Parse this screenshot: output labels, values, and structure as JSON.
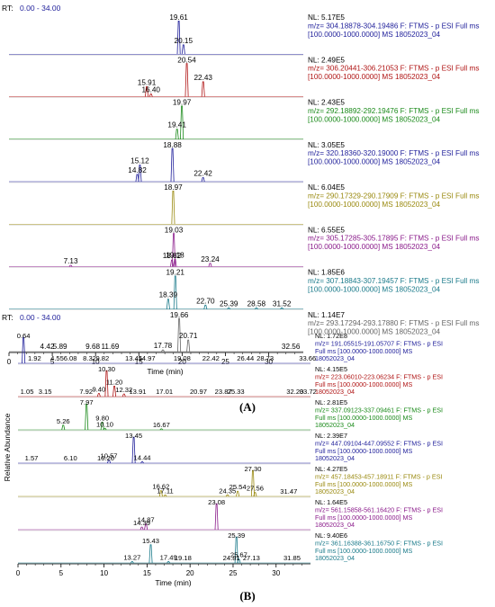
{
  "chart_data": [
    {
      "type": "line",
      "panel_label": "(A)",
      "rt_label": "RT:",
      "rt_range": "0.00 - 34.00",
      "xlabel": "Time (min)",
      "ylabel": "",
      "xlim": [
        0,
        34
      ],
      "xticks": [
        0,
        5,
        10,
        15,
        20,
        25,
        30
      ],
      "series": [
        {
          "nl": "NL: 5.17E5",
          "info": [
            "m/z= 304.18878-304.19486 F: FTMS - p ESI Full ms",
            "[100.0000-1000.0000]  MS 18052023_04"
          ],
          "color": "#1f1f9a",
          "peaks": [
            {
              "x": 19.61,
              "h": 1.0
            },
            {
              "x": 20.15,
              "h": 0.28
            }
          ],
          "labels": [
            {
              "x": 19.61,
              "t": "19.61"
            },
            {
              "x": 20.15,
              "t": "20.15"
            }
          ]
        },
        {
          "nl": "NL: 2.49E5",
          "info": [
            "m/z= 306.20441-306.21053 F: FTMS - p ESI Full ms",
            "[100.0000-1000.0000]  MS 18052023_04"
          ],
          "color": "#b01515",
          "peaks": [
            {
              "x": 15.91,
              "h": 0.3
            },
            {
              "x": 16.4,
              "h": 0.08
            },
            {
              "x": 20.54,
              "h": 1.0
            },
            {
              "x": 22.43,
              "h": 0.45
            }
          ],
          "labels": [
            {
              "x": 20.54,
              "t": "20.54"
            },
            {
              "x": 15.91,
              "t": "15.91"
            },
            {
              "x": 16.4,
              "t": "16.40"
            },
            {
              "x": 22.43,
              "t": "22.43"
            }
          ]
        },
        {
          "nl": "NL: 2.43E5",
          "info": [
            "m/z= 292.18892-292.19476 F: FTMS - p ESI Full ms",
            "[100.0000-1000.0000]  MS 18052023_04"
          ],
          "color": "#1a8a1a",
          "peaks": [
            {
              "x": 19.97,
              "h": 1.0
            },
            {
              "x": 19.41,
              "h": 0.3
            }
          ],
          "labels": [
            {
              "x": 19.97,
              "t": "19.97"
            },
            {
              "x": 19.41,
              "t": "19.41"
            }
          ]
        },
        {
          "nl": "NL: 3.05E5",
          "info": [
            "m/z= 320.18360-320.19000 F: FTMS - p ESI Full ms",
            "[100.0000-1000.0000]  MS 18052023_04"
          ],
          "color": "#1f1f9a",
          "peaks": [
            {
              "x": 14.82,
              "h": 0.22
            },
            {
              "x": 15.12,
              "h": 0.5
            },
            {
              "x": 18.88,
              "h": 1.0
            },
            {
              "x": 22.42,
              "h": 0.12
            }
          ],
          "labels": [
            {
              "x": 18.88,
              "t": "18.88"
            },
            {
              "x": 15.12,
              "t": "15.12"
            },
            {
              "x": 14.82,
              "t": "14.82"
            },
            {
              "x": 22.42,
              "t": "22.42"
            }
          ]
        },
        {
          "nl": "NL: 6.04E5",
          "info": [
            "m/z= 290.17329-290.17909 F: FTMS - p ESI Full ms",
            "[100.0000-1000.0000]  MS 18052023_04"
          ],
          "color": "#9a8a10",
          "peaks": [
            {
              "x": 18.97,
              "h": 1.0
            }
          ],
          "labels": [
            {
              "x": 18.97,
              "t": "18.97"
            }
          ]
        },
        {
          "nl": "NL: 6.55E5",
          "info": [
            "m/z= 305.17285-305.17895 F: FTMS - p ESI Full ms",
            "[100.0000-1000.0000]  MS 18052023_04"
          ],
          "color": "#8a1a8a",
          "peaks": [
            {
              "x": 19.03,
              "h": 1.0
            },
            {
              "x": 18.82,
              "h": 0.2
            },
            {
              "x": 19.18,
              "h": 0.22
            },
            {
              "x": 23.24,
              "h": 0.1
            },
            {
              "x": 7.13,
              "h": 0.04
            }
          ],
          "labels": [
            {
              "x": 19.03,
              "t": "19.03"
            },
            {
              "x": 7.13,
              "t": "7.13"
            },
            {
              "x": 18.82,
              "t": "18.82"
            },
            {
              "x": 19.18,
              "t": "19.18"
            },
            {
              "x": 23.24,
              "t": "23.24"
            }
          ]
        },
        {
          "nl": "NL: 1.85E6",
          "info": [
            "m/z= 307.18843-307.19457 F: FTMS - p ESI Full ms",
            "[100.0000-1000.0000]  MS 18052023_04"
          ],
          "color": "#1a7a8a",
          "peaks": [
            {
              "x": 19.21,
              "h": 1.0
            },
            {
              "x": 18.39,
              "h": 0.3
            },
            {
              "x": 22.7,
              "h": 0.12
            },
            {
              "x": 25.39,
              "h": 0.04
            },
            {
              "x": 28.58,
              "h": 0.04
            },
            {
              "x": 31.52,
              "h": 0.04
            }
          ],
          "labels": [
            {
              "x": 19.21,
              "t": "19.21"
            },
            {
              "x": 18.39,
              "t": "18.39"
            },
            {
              "x": 22.7,
              "t": "22.70"
            },
            {
              "x": 25.39,
              "t": "25.39"
            },
            {
              "x": 28.58,
              "t": "28.58"
            },
            {
              "x": 31.52,
              "t": "31.52"
            }
          ]
        },
        {
          "nl": "NL: 1.14E7",
          "info": [
            "m/z= 293.17294-293.17880 F: FTMS - p ESI Full ms",
            "[100.0000-1000.0000]  MS 18052023_04"
          ],
          "color": "#666666",
          "peaks": [
            {
              "x": 19.66,
              "h": 1.0
            },
            {
              "x": 20.71,
              "h": 0.35
            },
            {
              "x": 17.78,
              "h": 0.05
            }
          ],
          "labels": [
            {
              "x": 19.66,
              "t": "19.66"
            },
            {
              "x": 4.42,
              "t": "4.42"
            },
            {
              "x": 5.89,
              "t": "5.89"
            },
            {
              "x": 9.68,
              "t": "9.68"
            },
            {
              "x": 11.69,
              "t": "11.69"
            },
            {
              "x": 17.78,
              "t": "17.78"
            },
            {
              "x": 20.71,
              "t": "20.71"
            },
            {
              "x": 32.56,
              "t": "32.56"
            }
          ]
        }
      ]
    },
    {
      "type": "line",
      "panel_label": "(B)",
      "rt_label": "RT:",
      "rt_range": "0.00 - 34.00",
      "xlabel": "Time (min)",
      "ylabel": "Relative Abundance",
      "xlim": [
        0,
        34
      ],
      "xticks": [
        0,
        5,
        10,
        15,
        20,
        25,
        30
      ],
      "series": [
        {
          "nl": "NL: 1.72E8",
          "info": [
            "m/z= 191.05515-191.05707 F: FTMS - p ESI",
            "Full ms [100.0000-1000.0000]  MS",
            "18052023_04"
          ],
          "color": "#1f1f9a",
          "peaks": [
            {
              "x": 0.64,
              "h": 1.0
            }
          ],
          "labels": [
            {
              "x": 0.64,
              "t": "0.64"
            },
            {
              "x": 1.92,
              "t": "1.92"
            },
            {
              "x": 4.55,
              "t": "4.55"
            },
            {
              "x": 6.08,
              "t": "6.08"
            },
            {
              "x": 8.32,
              "t": "8.32"
            },
            {
              "x": 9.82,
              "t": "9.82"
            },
            {
              "x": 13.45,
              "t": "13.45"
            },
            {
              "x": 14.97,
              "t": "14.97"
            },
            {
              "x": 19.08,
              "t": "19.08"
            },
            {
              "x": 22.42,
              "t": "22.42"
            },
            {
              "x": 26.44,
              "t": "26.44"
            },
            {
              "x": 28.73,
              "t": "28.73"
            },
            {
              "x": 33.66,
              "t": "33.66"
            }
          ]
        },
        {
          "nl": "NL: 4.15E5",
          "info": [
            "m/z= 223.06010-223.06234 F: FTMS - p ESI",
            "Full ms [100.0000-1000.0000]  MS",
            "18052023_04"
          ],
          "color": "#b01515",
          "peaks": [
            {
              "x": 10.3,
              "h": 1.0
            },
            {
              "x": 11.2,
              "h": 0.4
            },
            {
              "x": 9.4,
              "h": 0.12
            },
            {
              "x": 12.32,
              "h": 0.1
            }
          ],
          "labels": [
            {
              "x": 10.3,
              "t": "10.30"
            },
            {
              "x": 11.2,
              "t": "11.20"
            },
            {
              "x": 1.05,
              "t": "1.05"
            },
            {
              "x": 3.15,
              "t": "3.15"
            },
            {
              "x": 7.92,
              "t": "7.92"
            },
            {
              "x": 9.4,
              "t": "9.40"
            },
            {
              "x": 12.32,
              "t": "12.32"
            },
            {
              "x": 13.91,
              "t": "13.91"
            },
            {
              "x": 17.01,
              "t": "17.01"
            },
            {
              "x": 20.97,
              "t": "20.97"
            },
            {
              "x": 23.87,
              "t": "23.87"
            },
            {
              "x": 25.33,
              "t": "25.33"
            },
            {
              "x": 32.2,
              "t": "32.20"
            },
            {
              "x": 33.72,
              "t": "33.72"
            }
          ]
        },
        {
          "nl": "NL: 2.81E5",
          "info": [
            "m/z= 337.09123-337.09461 F: FTMS - p ESI",
            "Full ms [100.0000-1000.0000]  MS",
            "18052023_04"
          ],
          "color": "#1a8a1a",
          "peaks": [
            {
              "x": 7.97,
              "h": 1.0
            },
            {
              "x": 5.26,
              "h": 0.18
            },
            {
              "x": 9.8,
              "h": 0.3
            },
            {
              "x": 10.1,
              "h": 0.06
            },
            {
              "x": 16.67,
              "h": 0.04
            }
          ],
          "labels": [
            {
              "x": 7.97,
              "t": "7.97"
            },
            {
              "x": 5.26,
              "t": "5.26"
            },
            {
              "x": 9.8,
              "t": "9.80"
            },
            {
              "x": 10.1,
              "t": "10.10"
            },
            {
              "x": 16.67,
              "t": "16.67"
            }
          ]
        },
        {
          "nl": "NL: 2.39E7",
          "info": [
            "m/z= 447.09104-447.09552 F: FTMS - p ESI",
            "Full ms [100.0000-1000.0000]  MS",
            "18052023_04"
          ],
          "color": "#1f1f9a",
          "peaks": [
            {
              "x": 13.45,
              "h": 1.0
            },
            {
              "x": 10.57,
              "h": 0.12
            },
            {
              "x": 14.44,
              "h": 0.05
            }
          ],
          "labels": [
            {
              "x": 13.45,
              "t": "13.45"
            },
            {
              "x": 1.57,
              "t": "1.57"
            },
            {
              "x": 6.1,
              "t": "6.10"
            },
            {
              "x": 10.2,
              "t": "10.20"
            },
            {
              "x": 10.57,
              "t": "10.57"
            },
            {
              "x": 14.44,
              "t": "14.44"
            }
          ]
        },
        {
          "nl": "NL: 4.27E5",
          "info": [
            "m/z= 457.18453-457.18911 F: FTMS - p ESI",
            "Full ms [100.0000-1000.0000]  MS",
            "18052023_04"
          ],
          "color": "#9a8a10",
          "peaks": [
            {
              "x": 27.3,
              "h": 1.0
            },
            {
              "x": 16.62,
              "h": 0.22
            },
            {
              "x": 25.54,
              "h": 0.2
            },
            {
              "x": 27.56,
              "h": 0.15
            },
            {
              "x": 17.11,
              "h": 0.05
            },
            {
              "x": 24.35,
              "h": 0.06
            }
          ],
          "labels": [
            {
              "x": 27.3,
              "t": "27.30"
            },
            {
              "x": 16.62,
              "t": "16.62"
            },
            {
              "x": 17.11,
              "t": "17.11"
            },
            {
              "x": 24.35,
              "t": "24.35"
            },
            {
              "x": 25.54,
              "t": "25.54"
            },
            {
              "x": 27.56,
              "t": "27.56"
            },
            {
              "x": 31.47,
              "t": "31.47"
            }
          ]
        },
        {
          "nl": "NL: 1.64E5",
          "info": [
            "m/z= 561.15858-561.16420 F: FTMS - p ESI",
            "Full ms [100.0000-1000.0000]  MS",
            "18052023_04"
          ],
          "color": "#8a1a8a",
          "peaks": [
            {
              "x": 23.08,
              "h": 1.0
            },
            {
              "x": 14.39,
              "h": 0.1
            },
            {
              "x": 14.87,
              "h": 0.22
            }
          ],
          "labels": [
            {
              "x": 23.08,
              "t": "23.08"
            },
            {
              "x": 14.39,
              "t": "14.39"
            },
            {
              "x": 14.87,
              "t": "14.87"
            }
          ]
        },
        {
          "nl": "NL: 9.40E6",
          "info": [
            "m/z= 361.16388-361.16750 F: FTMS - p ESI",
            "Full ms [100.0000-1000.0000]  MS",
            "18052023_04"
          ],
          "color": "#1a7a8a",
          "peaks": [
            {
              "x": 25.39,
              "h": 1.0
            },
            {
              "x": 15.43,
              "h": 0.7
            },
            {
              "x": 25.67,
              "h": 0.15
            },
            {
              "x": 13.27,
              "h": 0.05
            },
            {
              "x": 17.49,
              "h": 0.05
            }
          ],
          "labels": [
            {
              "x": 25.39,
              "t": "25.39"
            },
            {
              "x": 15.43,
              "t": "15.43"
            },
            {
              "x": 13.27,
              "t": "13.27"
            },
            {
              "x": 17.49,
              "t": "17.49"
            },
            {
              "x": 19.18,
              "t": "19.18"
            },
            {
              "x": 24.81,
              "t": "24.81"
            },
            {
              "x": 25.67,
              "t": "25.67"
            },
            {
              "x": 27.13,
              "t": "27.13"
            },
            {
              "x": 31.85,
              "t": "31.85"
            }
          ]
        }
      ]
    }
  ]
}
